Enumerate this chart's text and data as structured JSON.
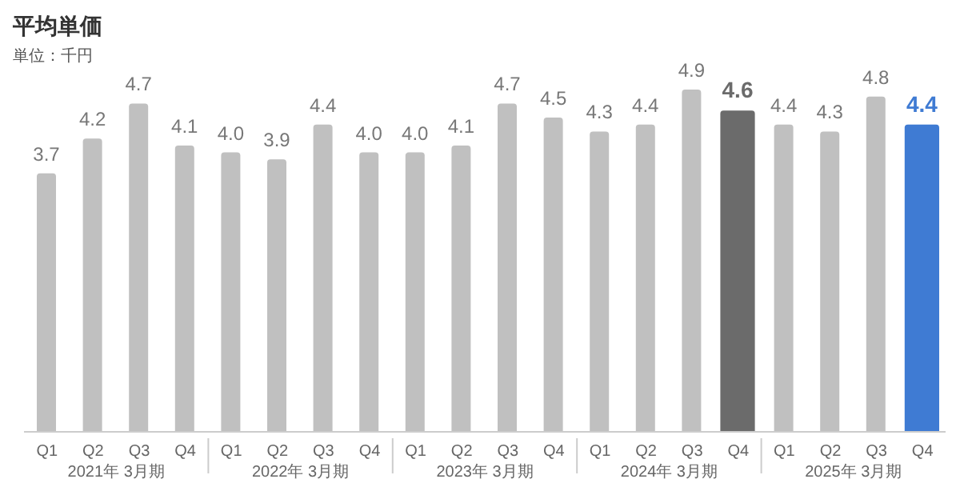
{
  "chart_data": {
    "type": "bar",
    "title": "平均単価",
    "subtitle": "単位：千円",
    "categories": [
      "Q1",
      "Q2",
      "Q3",
      "Q4",
      "Q1",
      "Q2",
      "Q3",
      "Q4",
      "Q1",
      "Q2",
      "Q3",
      "Q4",
      "Q1",
      "Q2",
      "Q3",
      "Q4",
      "Q1",
      "Q2",
      "Q3",
      "Q4"
    ],
    "values": [
      3.7,
      4.2,
      4.7,
      4.1,
      4.0,
      3.9,
      4.4,
      4.0,
      4.0,
      4.1,
      4.7,
      4.5,
      4.3,
      4.4,
      4.9,
      4.6,
      4.4,
      4.3,
      4.8,
      4.4
    ],
    "value_labels": [
      "3.7",
      "4.2",
      "4.7",
      "4.1",
      "4.0",
      "3.9",
      "4.4",
      "4.0",
      "4.0",
      "4.1",
      "4.7",
      "4.5",
      "4.3",
      "4.4",
      "4.9",
      "4.6",
      "4.4",
      "4.3",
      "4.8",
      "4.4"
    ],
    "colors": [
      "#c0c0c0",
      "#c0c0c0",
      "#c0c0c0",
      "#c0c0c0",
      "#c0c0c0",
      "#c0c0c0",
      "#c0c0c0",
      "#c0c0c0",
      "#c0c0c0",
      "#c0c0c0",
      "#c0c0c0",
      "#c0c0c0",
      "#c0c0c0",
      "#c0c0c0",
      "#c0c0c0",
      "#6b6b6b",
      "#c0c0c0",
      "#c0c0c0",
      "#c0c0c0",
      "#3f7bd3"
    ],
    "annotations": [
      "2021年 3月期",
      "2022年 3月期",
      "2023年 3月期",
      "2024年 3月期",
      "2025年 3月期"
    ],
    "grid": false,
    "legend": false
  }
}
